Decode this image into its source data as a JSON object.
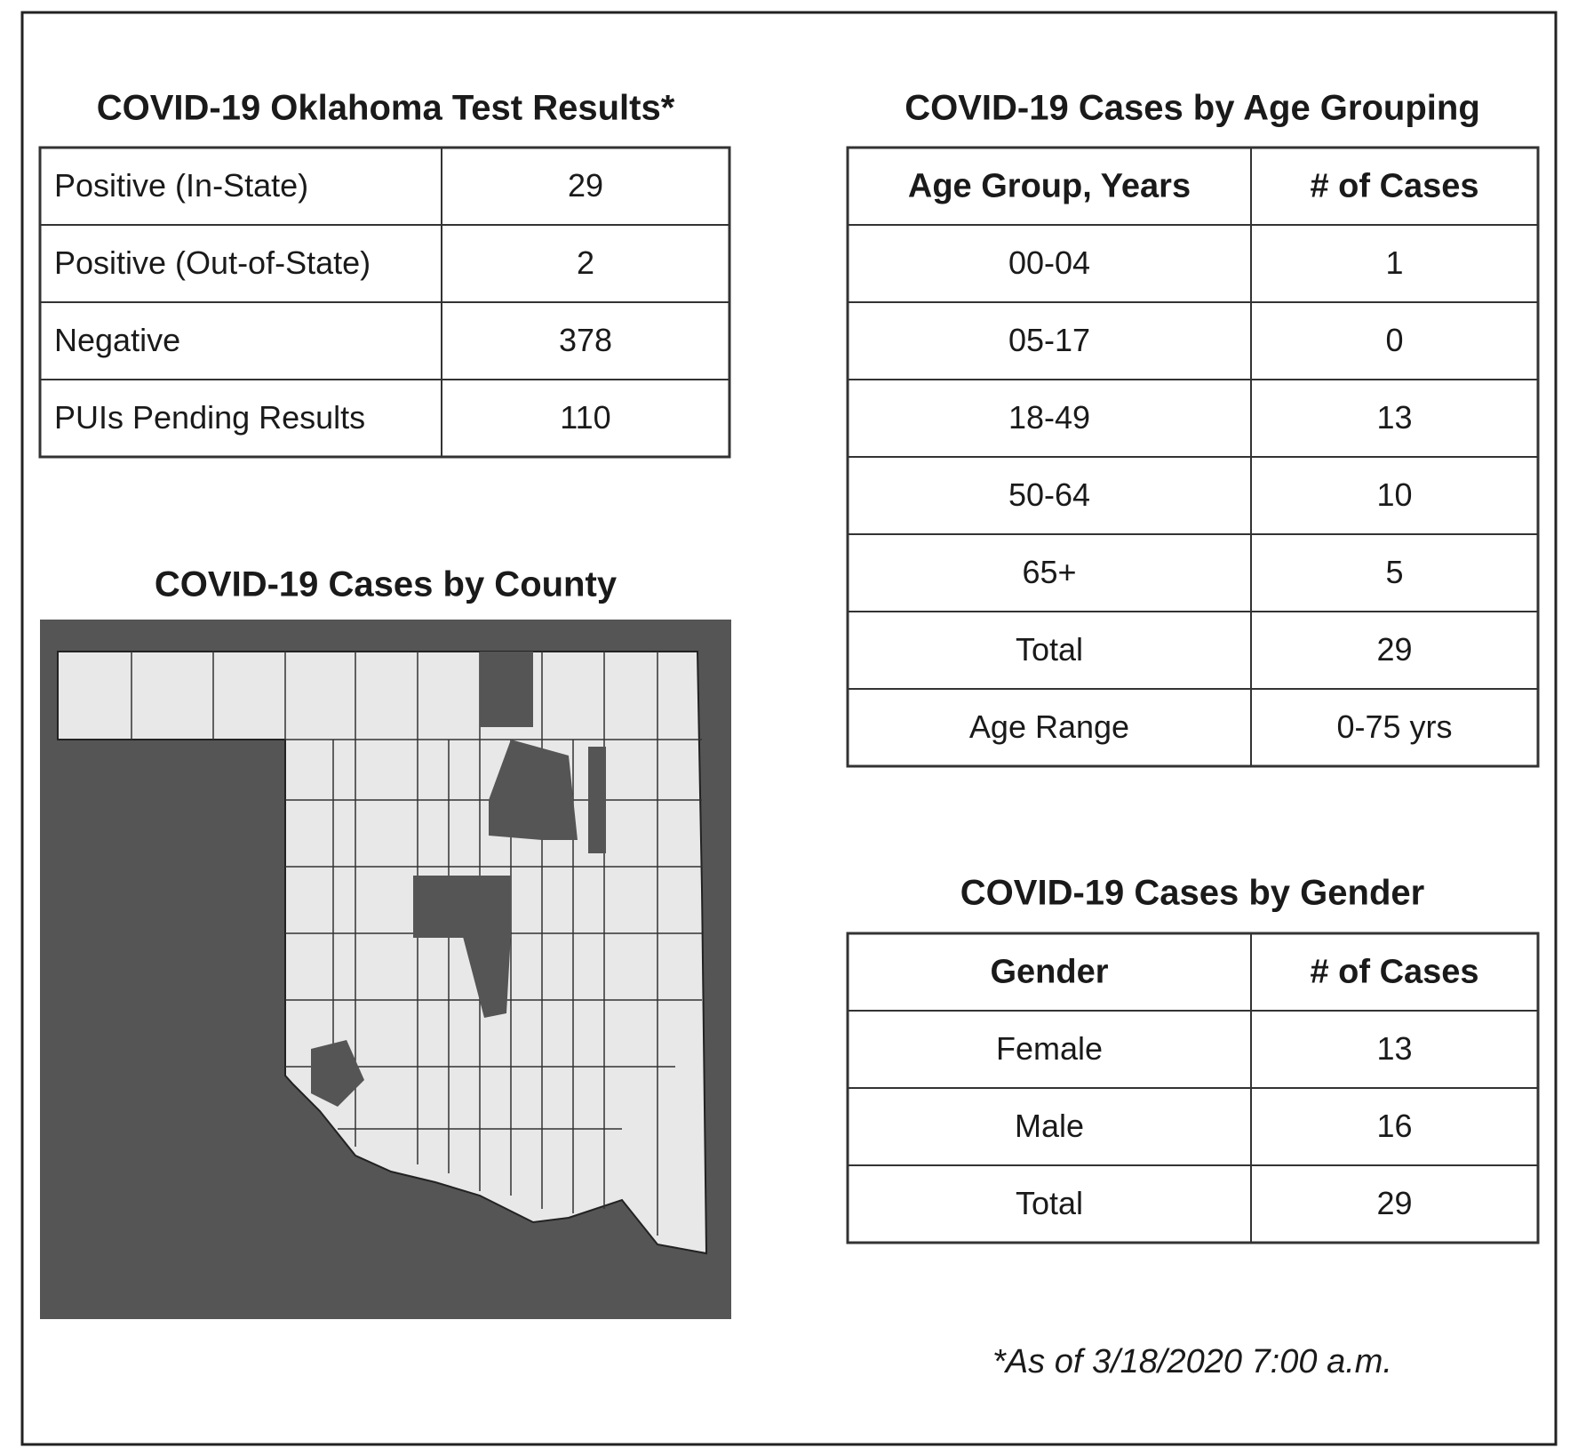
{
  "test_results": {
    "title": "COVID-19 Oklahoma Test Results*",
    "rows": [
      [
        "Positive (In-State)",
        "29"
      ],
      [
        "Positive (Out-of-State)",
        "2"
      ],
      [
        "Negative",
        "378"
      ],
      [
        "PUIs Pending Results",
        "110"
      ]
    ]
  },
  "county_map": {
    "title": "COVID-19 Cases by County"
  },
  "age_table": {
    "title": "COVID-19 Cases by Age Grouping",
    "header": [
      "Age Group, Years",
      "# of Cases"
    ],
    "rows": [
      [
        "00-04",
        "1"
      ],
      [
        "05-17",
        "0"
      ],
      [
        "18-49",
        "13"
      ],
      [
        "50-64",
        "10"
      ],
      [
        "65+",
        "5"
      ],
      [
        "Total",
        "29"
      ],
      [
        "Age Range",
        "0-75 yrs"
      ]
    ]
  },
  "gender_table": {
    "title": "COVID-19 Cases by Gender",
    "header": [
      "Gender",
      "# of Cases"
    ],
    "rows": [
      [
        "Female",
        "13"
      ],
      [
        "Male",
        "16"
      ],
      [
        "Total",
        "29"
      ]
    ]
  },
  "footnote": "*As of 3/18/2020 7:00 a.m."
}
